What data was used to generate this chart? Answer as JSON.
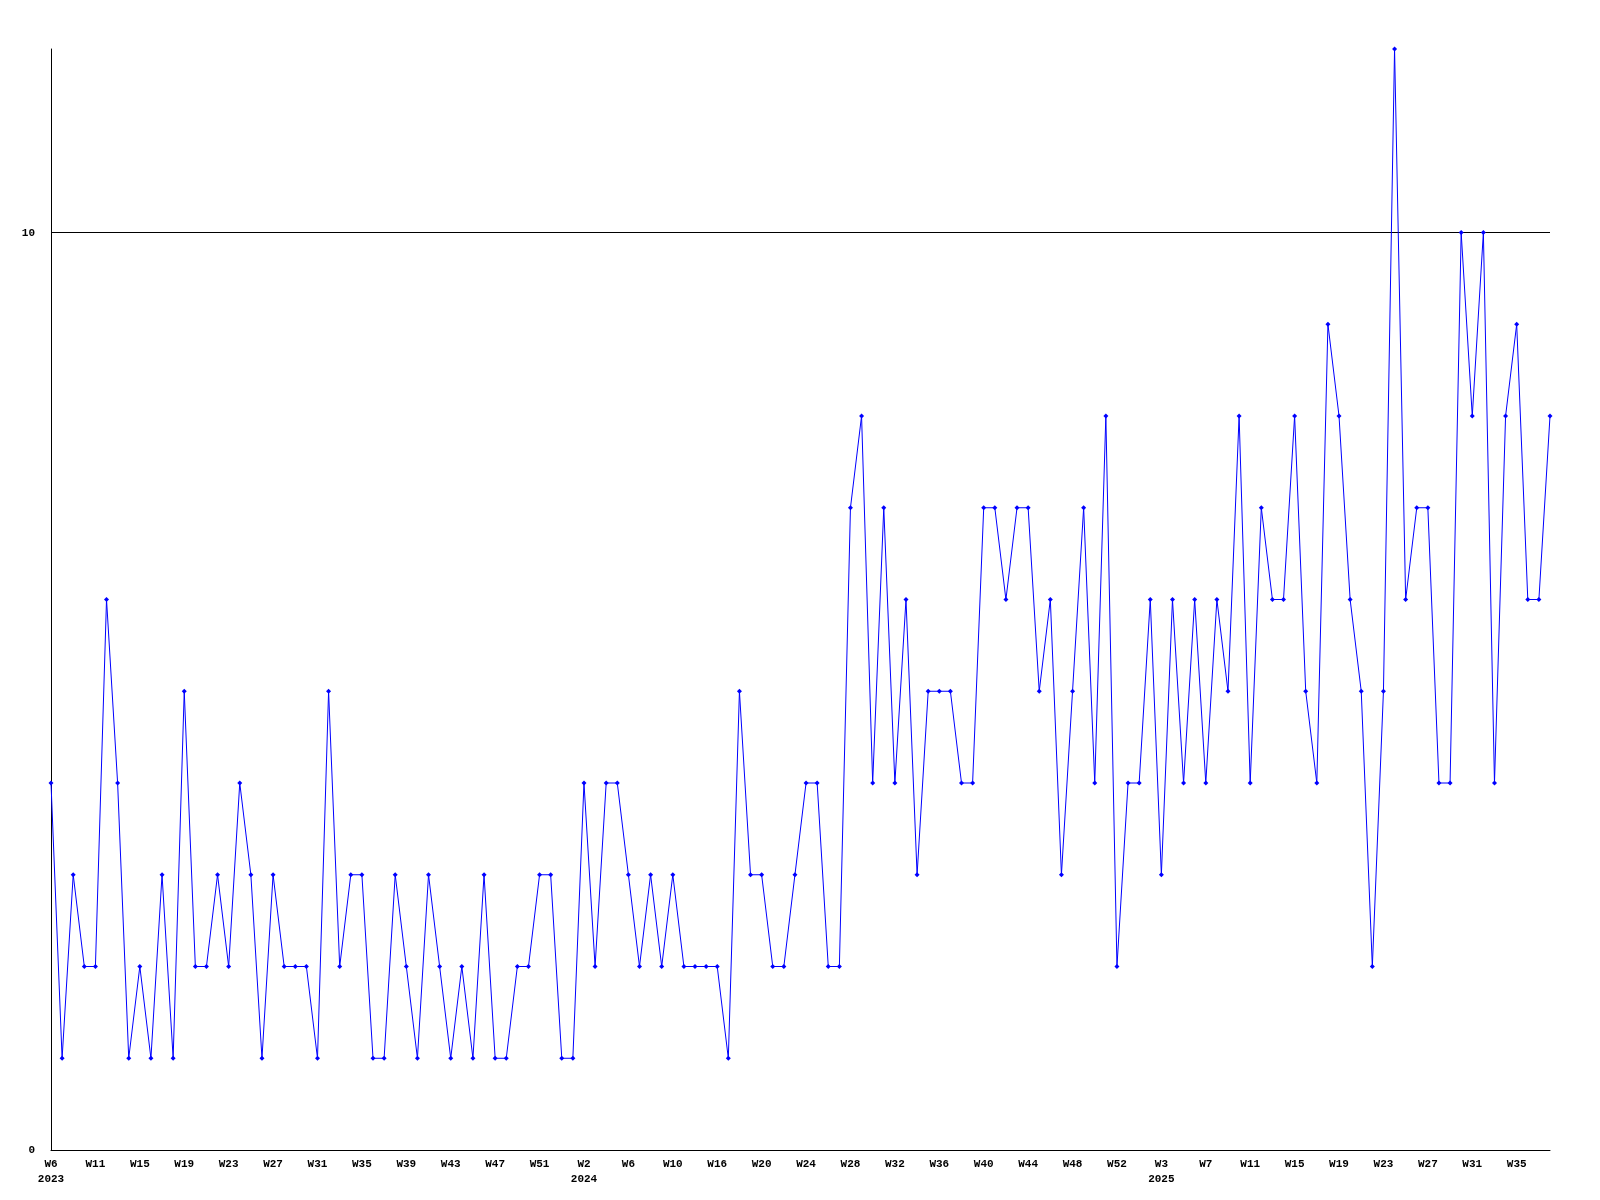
{
  "chart_data": {
    "type": "line",
    "categories": [
      "W6\n2023",
      null,
      null,
      null,
      "W11",
      null,
      null,
      null,
      "W15",
      null,
      null,
      null,
      "W19",
      null,
      null,
      null,
      "W23",
      null,
      null,
      null,
      "W27",
      null,
      null,
      null,
      "W31",
      null,
      null,
      null,
      "W35",
      null,
      null,
      null,
      "W39",
      null,
      null,
      null,
      "W43",
      null,
      null,
      null,
      "W47",
      null,
      null,
      null,
      "W51",
      null,
      null,
      null,
      "W2\n2024",
      null,
      null,
      null,
      "W6",
      null,
      null,
      null,
      "W10",
      null,
      null,
      null,
      "W16",
      null,
      null,
      null,
      "W20",
      null,
      null,
      null,
      "W24",
      null,
      null,
      null,
      "W28",
      null,
      null,
      null,
      "W32",
      null,
      null,
      null,
      "W36",
      null,
      null,
      null,
      "W40",
      null,
      null,
      null,
      "W44",
      null,
      null,
      null,
      "W48",
      null,
      null,
      null,
      "W52",
      null,
      null,
      null,
      "W3\n2025",
      null,
      null,
      null,
      "W7",
      null,
      null,
      null,
      "W11",
      null,
      null,
      null,
      "W15",
      null,
      null,
      null,
      "W19",
      null,
      null,
      null,
      "W23",
      null,
      null,
      null,
      "W27",
      null,
      null,
      null,
      "W31",
      null,
      null,
      null,
      "W35",
      null,
      null,
      null
    ],
    "series": [
      {
        "color": "#0000ff",
        "values": [
          4,
          1,
          3,
          2,
          2,
          6,
          4,
          1,
          2,
          1,
          3,
          1,
          5,
          2,
          2,
          3,
          2,
          4,
          3,
          1,
          3,
          2,
          2,
          2,
          1,
          5,
          2,
          3,
          3,
          1,
          1,
          3,
          2,
          1,
          3,
          2,
          1,
          2,
          1,
          3,
          1,
          1,
          2,
          2,
          3,
          3,
          1,
          1,
          4,
          2,
          4,
          4,
          3,
          2,
          3,
          2,
          3,
          2,
          2,
          2,
          2,
          1,
          5,
          3,
          3,
          2,
          2,
          3,
          4,
          4,
          2,
          2,
          7,
          8,
          4,
          7,
          4,
          6,
          3,
          5,
          5,
          5,
          4,
          4,
          7,
          7,
          6,
          7,
          7,
          5,
          6,
          3,
          5,
          7,
          4,
          8,
          2,
          4,
          4,
          6,
          3,
          6,
          4,
          6,
          4,
          6,
          5,
          8,
          4,
          7,
          6,
          6,
          8,
          5,
          4,
          9,
          8,
          6,
          5,
          2,
          5,
          12,
          6,
          7,
          7,
          4,
          4,
          10,
          8,
          10,
          4,
          8,
          9,
          6,
          6,
          8
        ]
      }
    ],
    "ylim": [
      0,
      12
    ],
    "yticks": [
      0,
      10
    ],
    "grid": "y",
    "marker": "diamond",
    "line_style": "solid"
  }
}
